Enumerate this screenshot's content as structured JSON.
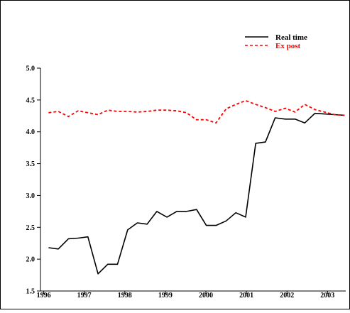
{
  "chart_data": {
    "type": "line",
    "title": "",
    "xlabel": "",
    "ylabel": "",
    "xlim": [
      1995.92,
      2003.45
    ],
    "ylim": [
      1.5,
      5.0
    ],
    "y_ticks": [
      1.5,
      2.0,
      2.5,
      3.0,
      3.5,
      4.0,
      4.5,
      5.0
    ],
    "y_tick_labels": [
      "1.5",
      "2.0",
      "2.5",
      "3.0",
      "3.5",
      "4.0",
      "4.5",
      "5.0"
    ],
    "x_ticks": [
      1996,
      1997,
      1998,
      1999,
      2000,
      2001,
      2002,
      2003
    ],
    "x_tick_labels": [
      "1996",
      "1997",
      "1998",
      "1999",
      "2000",
      "2001",
      "2002",
      "2003"
    ],
    "legend_position": "top-right",
    "grid": false,
    "series": [
      {
        "name": "Real time",
        "color": "#000000",
        "style": "solid",
        "x": [
          1996.12,
          1996.36,
          1996.61,
          1996.85,
          1997.09,
          1997.34,
          1997.58,
          1997.82,
          1998.07,
          1998.31,
          1998.55,
          1998.79,
          1999.04,
          1999.28,
          1999.52,
          1999.77,
          2000.01,
          2000.25,
          2000.5,
          2000.74,
          2000.98,
          2001.23,
          2001.47,
          2001.71,
          2001.96,
          2002.2,
          2002.44,
          2002.69,
          2002.93,
          2003.17,
          2003.42
        ],
        "y": [
          2.18,
          2.16,
          2.32,
          2.33,
          2.35,
          1.77,
          1.92,
          1.92,
          2.46,
          2.57,
          2.55,
          2.75,
          2.66,
          2.75,
          2.75,
          2.78,
          2.53,
          2.53,
          2.6,
          2.73,
          2.66,
          3.82,
          3.84,
          4.22,
          4.2,
          4.2,
          4.14,
          4.29,
          4.28,
          4.27,
          4.26
        ]
      },
      {
        "name": "Ex post",
        "color": "#ff0000",
        "style": "dashed",
        "x": [
          1996.12,
          1996.36,
          1996.61,
          1996.85,
          1997.09,
          1997.34,
          1997.58,
          1997.82,
          1998.07,
          1998.31,
          1998.55,
          1998.79,
          1999.04,
          1999.28,
          1999.52,
          1999.77,
          2000.01,
          2000.25,
          2000.5,
          2000.74,
          2000.98,
          2001.23,
          2001.47,
          2001.71,
          2001.96,
          2002.2,
          2002.44,
          2002.69,
          2002.93,
          2003.17,
          2003.42
        ],
        "y": [
          4.3,
          4.32,
          4.24,
          4.33,
          4.3,
          4.27,
          4.34,
          4.32,
          4.32,
          4.31,
          4.32,
          4.34,
          4.34,
          4.33,
          4.3,
          4.19,
          4.19,
          4.14,
          4.36,
          4.43,
          4.49,
          4.43,
          4.38,
          4.32,
          4.37,
          4.31,
          4.43,
          4.35,
          4.31,
          4.27,
          4.26
        ]
      }
    ]
  }
}
